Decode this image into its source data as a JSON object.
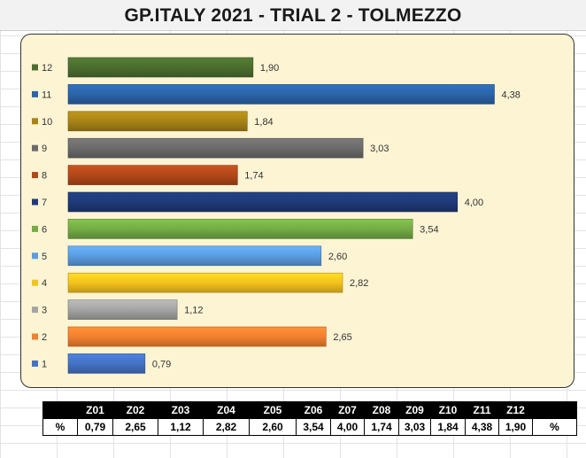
{
  "title": "GP.ITALY 2021 - TRIAL 2 - TOLMEZZO",
  "chart_data": {
    "type": "bar",
    "orientation": "horizontal",
    "categories": [
      "12",
      "11",
      "10",
      "9",
      "8",
      "7",
      "6",
      "5",
      "4",
      "3",
      "2",
      "1"
    ],
    "values": [
      1.9,
      4.38,
      1.84,
      3.03,
      1.74,
      4.0,
      3.54,
      2.6,
      2.82,
      1.12,
      2.65,
      0.79
    ],
    "value_labels": [
      "1,90",
      "4,38",
      "1,84",
      "3,03",
      "1,74",
      "4,00",
      "3,54",
      "2,60",
      "2,82",
      "1,12",
      "2,65",
      "0,79"
    ],
    "colors": [
      "#4b6e2e",
      "#2b64a8",
      "#a88416",
      "#6b6b6b",
      "#b2481a",
      "#1f3a78",
      "#74ac45",
      "#5a9de0",
      "#f4c21e",
      "#a4a4a4",
      "#f3802f",
      "#4472c4"
    ],
    "xlim": [
      0,
      4.6
    ],
    "grid": false,
    "legend": "none"
  },
  "table": {
    "header": [
      "",
      "Z01",
      "Z02",
      "Z03",
      "Z04",
      "Z05",
      "Z06",
      "Z07",
      "Z08",
      "Z09",
      "Z10",
      "Z11",
      "Z12",
      ""
    ],
    "row": [
      "%",
      "0,79",
      "2,65",
      "1,12",
      "2,82",
      "2,60",
      "3,54",
      "4,00",
      "1,74",
      "3,03",
      "1,84",
      "4,38",
      "1,90",
      "%"
    ]
  }
}
